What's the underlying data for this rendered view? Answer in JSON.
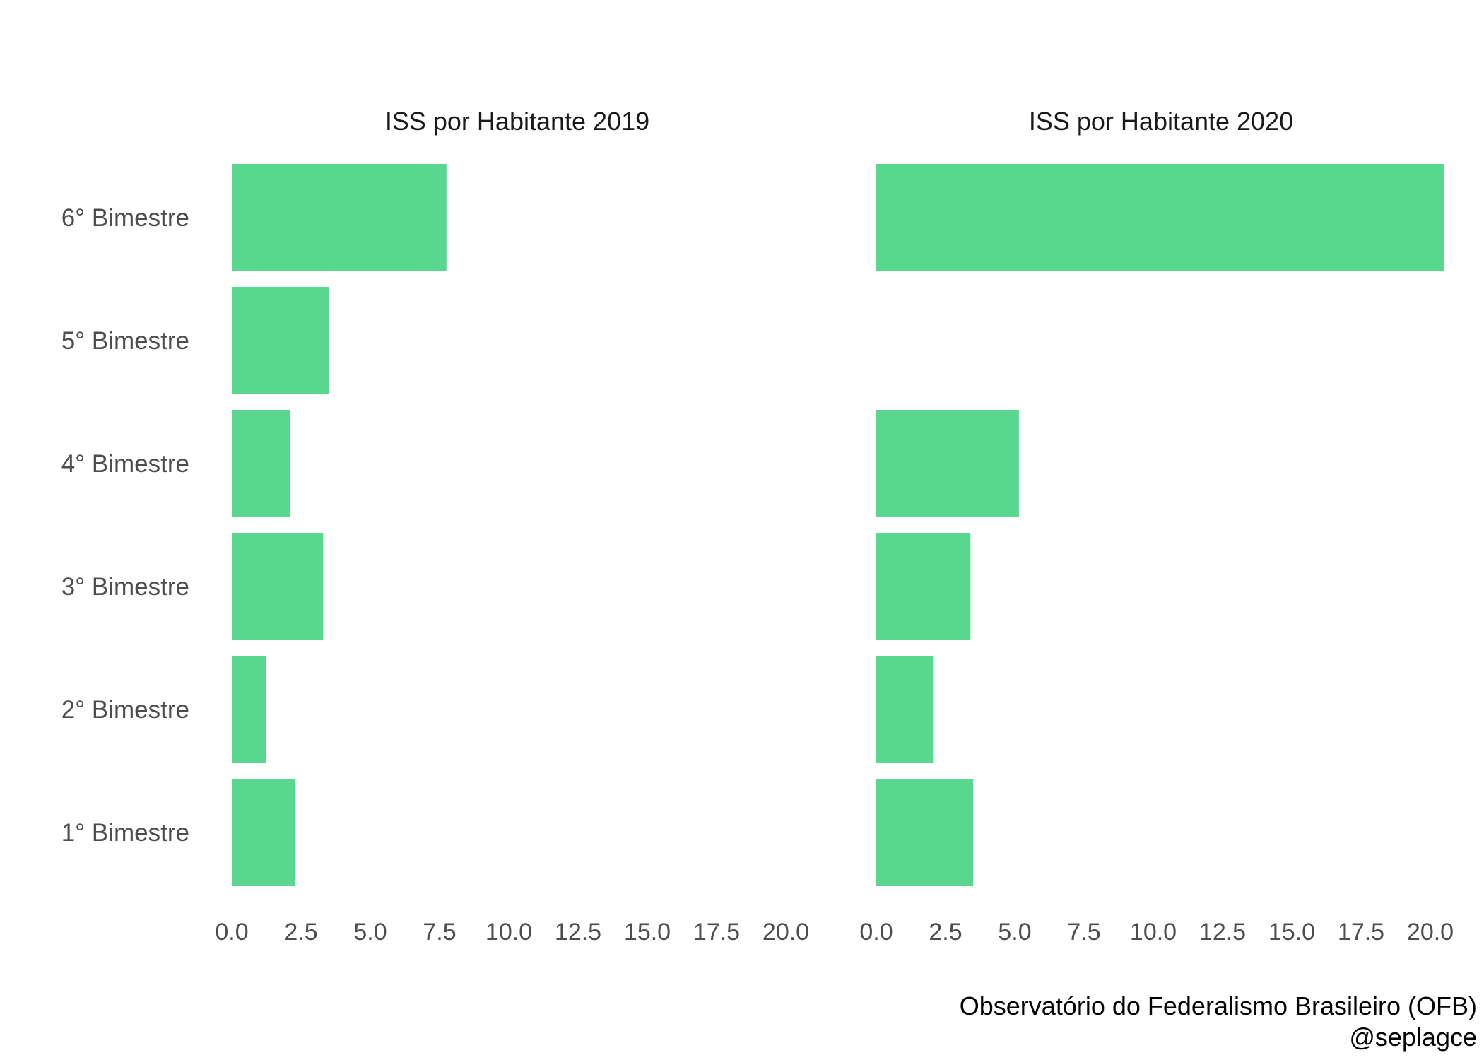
{
  "chart_data": {
    "type": "bar",
    "orientation": "horizontal",
    "facet_by": "panel",
    "categories": [
      "1° Bimestre",
      "2° Bimestre",
      "3° Bimestre",
      "4° Bimestre",
      "5° Bimestre",
      "6° Bimestre"
    ],
    "panels": [
      {
        "title": "ISS por Habitante 2019",
        "values": [
          2.3,
          1.25,
          3.3,
          2.1,
          3.5,
          7.75
        ]
      },
      {
        "title": "ISS por Habitante 2020",
        "values": [
          3.5,
          2.05,
          3.4,
          5.15,
          null,
          20.5
        ]
      }
    ],
    "x_ticks": [
      "0.0",
      "2.5",
      "5.0",
      "7.5",
      "10.0",
      "12.5",
      "15.0",
      "17.5",
      "20.0"
    ],
    "xlim": [
      0,
      20.5
    ],
    "xlabel": "",
    "ylabel": "",
    "grid": false,
    "legend": "none",
    "bar_color": "#59d78e"
  },
  "caption": {
    "line1": "Observatório do Federalismo Brasileiro (OFB)",
    "line2": "@seplagce"
  }
}
